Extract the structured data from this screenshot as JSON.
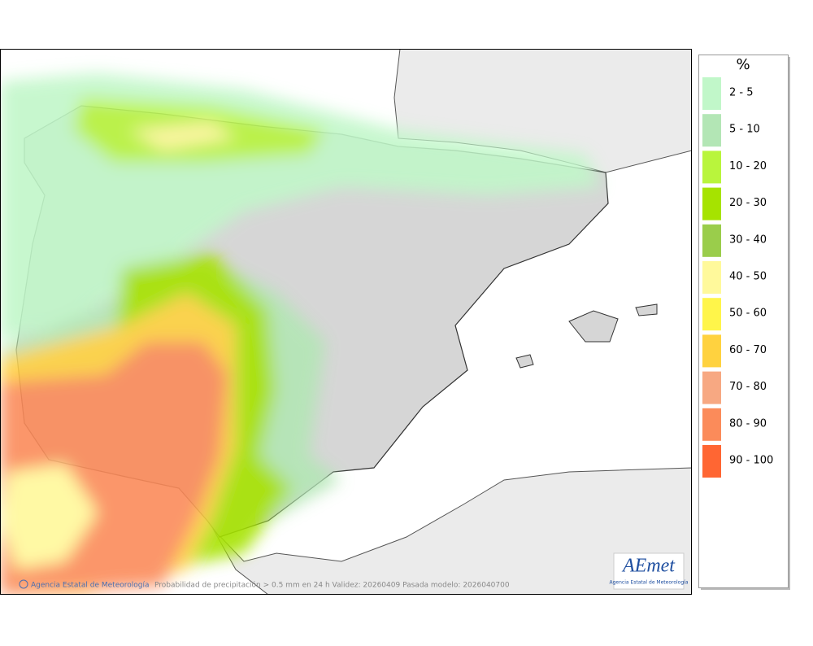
{
  "legend": {
    "title": "%",
    "items": [
      {
        "label": "2 - 5",
        "color": "#c1f7c9"
      },
      {
        "label": "5 - 10",
        "color": "#b3e6b5"
      },
      {
        "label": "10 - 20",
        "color": "#b9f53c"
      },
      {
        "label": "20 - 30",
        "color": "#a6e300"
      },
      {
        "label": "30 - 40",
        "color": "#9acd4b"
      },
      {
        "label": "40 - 50",
        "color": "#fff99b"
      },
      {
        "label": "50 - 60",
        "color": "#fff54a"
      },
      {
        "label": "60 - 70",
        "color": "#ffd23f"
      },
      {
        "label": "70 - 80",
        "color": "#f7a882"
      },
      {
        "label": "80 - 90",
        "color": "#fb8b5a"
      },
      {
        "label": "90 - 100",
        "color": "#ff6633"
      }
    ]
  },
  "credit": "Agencia Estatal de Meteorología",
  "caption": "Probabilidad de precipitación > 0.5 mm en 24 h Validez: 20260409 Pasada modelo: 2026040700",
  "logo": {
    "name": "AEmet",
    "subtitle": "Agencia Estatal de Meteorología"
  }
}
